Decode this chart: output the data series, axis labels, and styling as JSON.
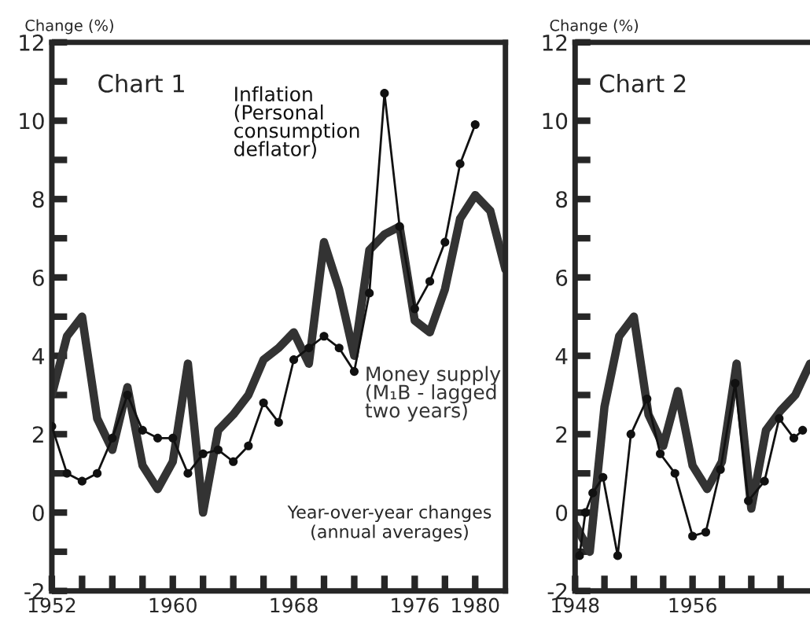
{
  "chart_data": [
    {
      "type": "line",
      "title": "Chart 1",
      "ylabel": "Change (%)",
      "xlim": [
        1952,
        1982
      ],
      "ylim": [
        -2,
        12
      ],
      "xticks": [
        1952,
        {
          "value": 1954,
          "label": null
        },
        {
          "value": 1956,
          "label": null
        },
        {
          "value": 1958,
          "label": null
        },
        1960,
        {
          "value": 1962,
          "label": null
        },
        {
          "value": 1964,
          "label": null
        },
        {
          "value": 1966,
          "label": null
        },
        1968,
        {
          "value": 1970,
          "label": null
        },
        {
          "value": 1972,
          "label": null
        },
        {
          "value": 1974,
          "label": null
        },
        1976,
        {
          "value": 1978,
          "label": null
        },
        1980
      ],
      "yticks": [
        -2,
        {
          "value": -1,
          "label": null
        },
        0,
        {
          "value": 1,
          "label": null
        },
        2,
        {
          "value": 3,
          "label": null
        },
        4,
        {
          "value": 5,
          "label": null
        },
        6,
        {
          "value": 7,
          "label": null
        },
        8,
        {
          "value": 9,
          "label": null
        },
        10,
        {
          "value": 11,
          "label": null
        },
        12
      ],
      "grid": false,
      "annotations": [
        "Year-over-year changes\n(annual averages)"
      ],
      "series": [
        {
          "name": "Inflation\n(Personal\nconsumption\ndeflator)",
          "color": "#111111",
          "marker": "circle",
          "x": [
            1952,
            1953,
            1954,
            1955,
            1956,
            1957,
            1958,
            1959,
            1960,
            1961,
            1962,
            1963,
            1964,
            1965,
            1966,
            1967,
            1968,
            1969,
            1970,
            1971,
            1972,
            1973,
            1974,
            1975,
            1976,
            1977,
            1978,
            1979,
            1980
          ],
          "values": [
            2.2,
            1.0,
            0.8,
            1.0,
            1.9,
            3.0,
            2.1,
            1.9,
            1.9,
            1.0,
            1.5,
            1.6,
            1.3,
            1.7,
            2.8,
            2.3,
            3.9,
            4.2,
            4.5,
            4.2,
            3.6,
            5.6,
            10.7,
            7.3,
            5.2,
            5.9,
            6.9,
            8.9,
            9.9
          ]
        },
        {
          "name": "Money supply\n(M₁B - lagged\ntwo years)",
          "color": "#333333",
          "marker": "none",
          "x": [
            1952,
            1953,
            1954,
            1955,
            1956,
            1957,
            1958,
            1959,
            1960,
            1961,
            1962,
            1963,
            1964,
            1965,
            1966,
            1967,
            1968,
            1969,
            1970,
            1971,
            1972,
            1973,
            1974,
            1975,
            1976,
            1977,
            1978,
            1979,
            1980,
            1981,
            1982
          ],
          "values": [
            3.0,
            4.5,
            5.0,
            2.4,
            1.6,
            3.2,
            1.2,
            0.6,
            1.3,
            3.8,
            0.0,
            2.1,
            2.5,
            3.0,
            3.9,
            4.2,
            4.6,
            3.8,
            6.9,
            5.7,
            4.0,
            6.7,
            7.1,
            7.3,
            4.9,
            4.6,
            5.7,
            7.5,
            8.1,
            7.7,
            6.2
          ]
        }
      ]
    },
    {
      "type": "line",
      "title": "Chart 2",
      "ylabel": "Change (%)",
      "xlim": [
        1948,
        1964
      ],
      "ylim": [
        -2,
        12
      ],
      "xticks": [
        1948,
        {
          "value": 1950,
          "label": null
        },
        {
          "value": 1952,
          "label": null
        },
        {
          "value": 1954,
          "label": null
        },
        1956,
        {
          "value": 1958,
          "label": null
        },
        {
          "value": 1960,
          "label": null
        },
        {
          "value": 1962,
          "label": null
        }
      ],
      "yticks": [
        -2,
        {
          "value": -1,
          "label": null
        },
        0,
        {
          "value": 1,
          "label": null
        },
        2,
        {
          "value": 3,
          "label": null
        },
        4,
        {
          "value": 5,
          "label": null
        },
        6,
        {
          "value": 7,
          "label": null
        },
        8,
        {
          "value": 9,
          "label": null
        },
        10,
        {
          "value": 11,
          "label": null
        },
        12
      ],
      "grid": false,
      "series": [
        {
          "color": "#111111",
          "marker": "circle",
          "x": [
            1948.3,
            1948.7,
            1949.2,
            1949.9,
            1950.9,
            1951.8,
            1952.9,
            1953.8,
            1954.8,
            1956.0,
            1956.9,
            1957.9,
            1958.9,
            1959.8,
            1960.9,
            1961.9,
            1962.9,
            1963.5
          ],
          "values": [
            -1.1,
            0.0,
            0.5,
            0.9,
            -1.1,
            2.0,
            2.9,
            1.5,
            1.0,
            -0.6,
            -0.5,
            1.1,
            3.3,
            0.3,
            0.8,
            2.4,
            1.9,
            2.1
          ]
        },
        {
          "color": "#333333",
          "marker": "none",
          "x": [
            1948,
            1949,
            1950,
            1951,
            1952,
            1953,
            1954,
            1955,
            1956,
            1957,
            1958,
            1959,
            1960,
            1961,
            1962,
            1963,
            1964
          ],
          "values": [
            -0.3,
            -1.0,
            2.7,
            4.5,
            5.0,
            2.5,
            1.7,
            3.1,
            1.2,
            0.6,
            1.3,
            3.8,
            0.1,
            2.1,
            2.6,
            3.0,
            3.8
          ]
        }
      ]
    }
  ]
}
